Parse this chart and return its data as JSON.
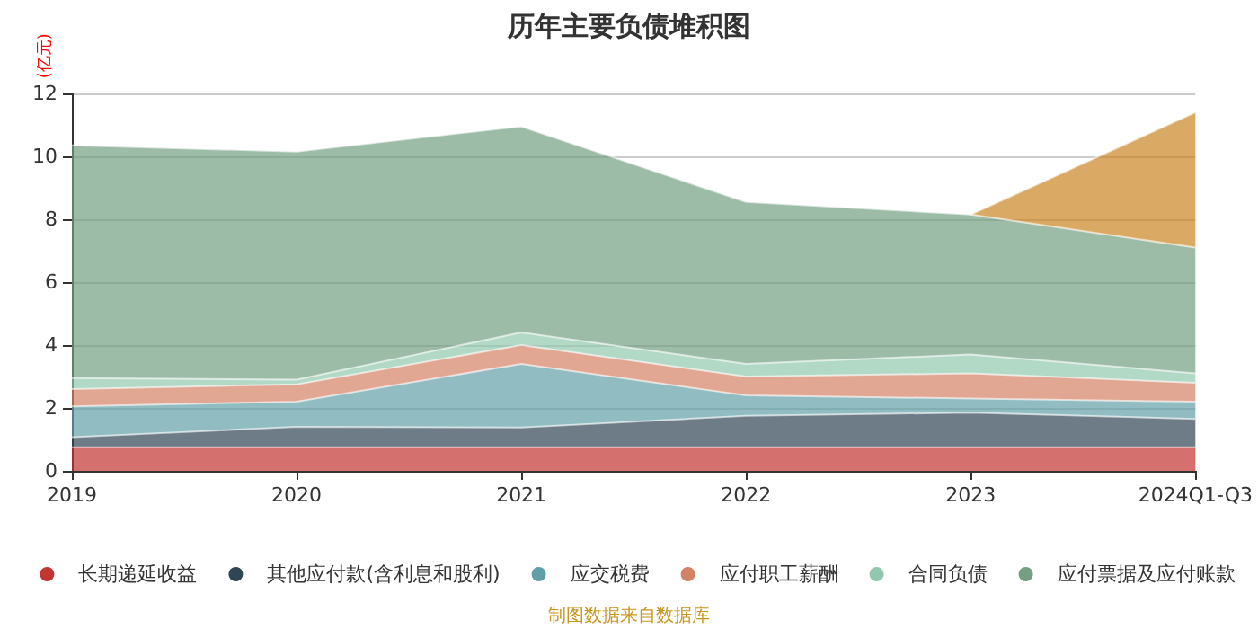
{
  "chart_data": {
    "type": "area",
    "title": "历年主要负债堆积图",
    "ylabel": "(亿元)",
    "annotations": [
      "制图数据来自数据库"
    ],
    "categories": [
      "2019",
      "2020",
      "2021",
      "2022",
      "2023",
      "2024Q1-Q3"
    ],
    "stacked": true,
    "series": [
      {
        "name": "长期递延收益",
        "color": "#c23531",
        "values": [
          0.75,
          0.75,
          0.75,
          0.75,
          0.75,
          0.75
        ]
      },
      {
        "name": "其他应付款(含利息和股利)",
        "color": "#2f4554",
        "values": [
          0.32,
          0.65,
          0.63,
          1.0,
          1.1,
          0.9
        ]
      },
      {
        "name": "应交税费",
        "color": "#61a0a8",
        "values": [
          0.98,
          0.8,
          2.02,
          0.65,
          0.45,
          0.55
        ]
      },
      {
        "name": "应付职工薪酬",
        "color": "#d48265",
        "values": [
          0.55,
          0.55,
          0.6,
          0.6,
          0.8,
          0.6
        ]
      },
      {
        "name": "合同负债",
        "color": "#91c7ae",
        "values": [
          0.35,
          0.15,
          0.4,
          0.4,
          0.6,
          0.3
        ]
      },
      {
        "name": "应付票据及应付账款",
        "color": "#749f83",
        "values": [
          7.4,
          7.25,
          6.55,
          5.15,
          4.45,
          4.0
        ]
      },
      {
        "color": "#ca8622",
        "values": [
          null,
          null,
          null,
          null,
          0,
          4.3
        ]
      }
    ],
    "ylim": [
      0,
      12
    ],
    "yticks": [
      0,
      2,
      4,
      6,
      8,
      10,
      12
    ],
    "grid": "y",
    "legend": "bottom"
  }
}
